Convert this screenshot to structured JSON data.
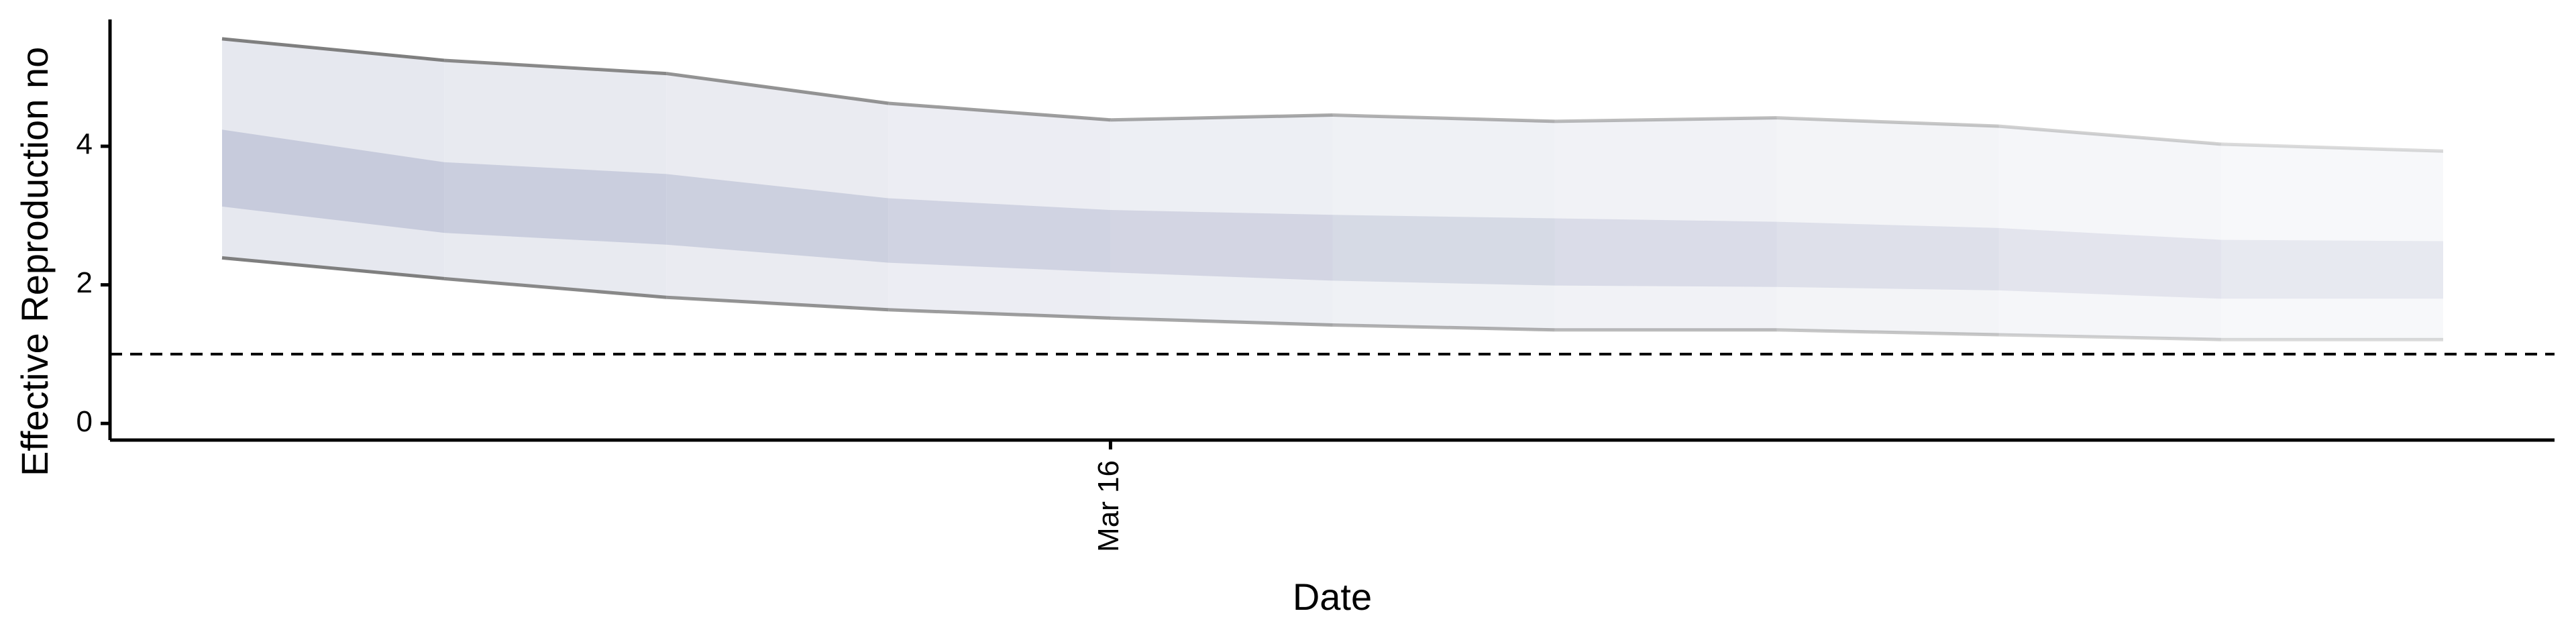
{
  "chart_data": {
    "type": "band",
    "y_label": "Effective Reproduction no",
    "x_label": "Date",
    "categories": [
      null,
      null,
      null,
      null,
      "Mar 16",
      null,
      null,
      null,
      null,
      null,
      null
    ],
    "outer": {
      "color": "#e6e8ef",
      "line_color": "#7f7f7f",
      "upper": [
        5.55,
        5.24,
        5.05,
        4.62,
        4.38,
        4.45,
        4.36,
        4.41,
        4.29,
        4.03,
        3.93
      ],
      "lower": [
        2.39,
        2.09,
        1.82,
        1.64,
        1.52,
        1.42,
        1.35,
        1.35,
        1.28,
        1.21,
        1.21
      ]
    },
    "inner": {
      "color": "#c7cbdc",
      "upper": [
        4.24,
        3.77,
        3.6,
        3.25,
        3.08,
        3.01,
        2.96,
        2.91,
        2.82,
        2.65,
        2.63
      ],
      "lower": [
        3.13,
        2.75,
        2.58,
        2.32,
        2.18,
        2.06,
        1.99,
        1.97,
        1.92,
        1.8,
        1.8
      ]
    },
    "reference_line": 1,
    "ylim": [
      -0.24,
      5.83
    ],
    "yticks": [
      0,
      2,
      4
    ]
  }
}
